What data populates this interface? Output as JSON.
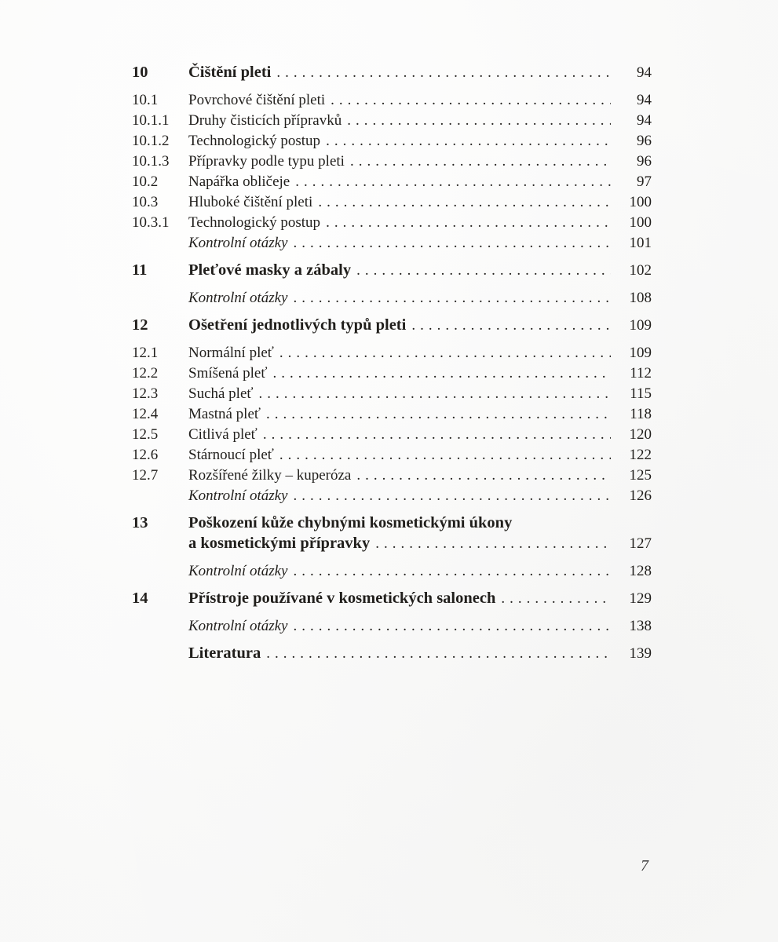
{
  "page": {
    "folio": "7",
    "background": "#fbfbfa",
    "text_color": "#211f1c"
  },
  "toc": {
    "entries": [
      {
        "num": "10",
        "title": "Čištění pleti",
        "page": "94",
        "style": "chapter"
      },
      {
        "num": "10.1",
        "title": "Povrchové čištění pleti",
        "page": "94",
        "style": "section"
      },
      {
        "num": "10.1.1",
        "title": "Druhy čisticích přípravků",
        "page": "94",
        "style": "section"
      },
      {
        "num": "10.1.2",
        "title": "Technologický postup",
        "page": "96",
        "style": "section"
      },
      {
        "num": "10.1.3",
        "title": "Přípravky podle typu pleti",
        "page": "96",
        "style": "section"
      },
      {
        "num": "10.2",
        "title": "Napářka obličeje",
        "page": "97",
        "style": "section"
      },
      {
        "num": "10.3",
        "title": "Hluboké čištění pleti",
        "page": "100",
        "style": "section"
      },
      {
        "num": "10.3.1",
        "title": "Technologický postup",
        "page": "100",
        "style": "section"
      },
      {
        "num": "",
        "title": "Kontrolní otázky",
        "page": "101",
        "style": "italic-note"
      },
      {
        "num": "11",
        "title": "Pleťové masky a zábaly",
        "page": "102",
        "style": "chapter"
      },
      {
        "num": "",
        "title": "Kontrolní otázky",
        "page": "108",
        "style": "italic-note"
      },
      {
        "num": "12",
        "title": "Ošetření jednotlivých typů pleti",
        "page": "109",
        "style": "chapter"
      },
      {
        "num": "12.1",
        "title": "Normální pleť",
        "page": "109",
        "style": "section"
      },
      {
        "num": "12.2",
        "title": "Smíšená pleť",
        "page": "112",
        "style": "section"
      },
      {
        "num": "12.3",
        "title": "Suchá pleť",
        "page": "115",
        "style": "section"
      },
      {
        "num": "12.4",
        "title": "Mastná pleť",
        "page": "118",
        "style": "section"
      },
      {
        "num": "12.5",
        "title": "Citlivá pleť",
        "page": "120",
        "style": "section"
      },
      {
        "num": "12.6",
        "title": "Stárnoucí pleť",
        "page": "122",
        "style": "section"
      },
      {
        "num": "12.7",
        "title": "Rozšířené žilky – kuperóza",
        "page": "125",
        "style": "section"
      },
      {
        "num": "",
        "title": "Kontrolní otázky",
        "page": "126",
        "style": "italic-note"
      },
      {
        "num": "13",
        "title": "Poškození kůže chybnými kosmetickými úkony",
        "title2": "a kosmetickými přípravky",
        "page": "127",
        "style": "chapter"
      },
      {
        "num": "",
        "title": "Kontrolní otázky",
        "page": "128",
        "style": "italic-note"
      },
      {
        "num": "14",
        "title": "Přístroje používané v kosmetických salonech",
        "page": "129",
        "style": "chapter"
      },
      {
        "num": "",
        "title": "Kontrolní otázky",
        "page": "138",
        "style": "italic-note"
      },
      {
        "num": "",
        "title": "Literatura",
        "page": "139",
        "style": "chapter"
      }
    ]
  }
}
